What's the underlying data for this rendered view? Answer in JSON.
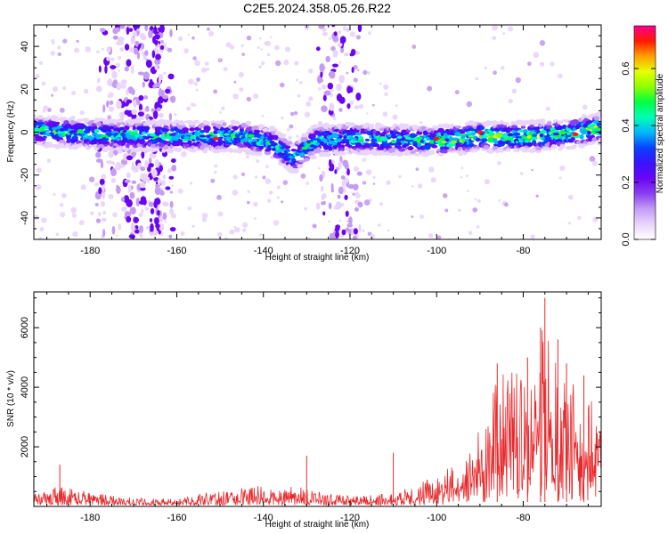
{
  "title": "C2E5.2024.358.05.26.R22",
  "chart_data": [
    {
      "type": "heatmap",
      "xlabel": "Height of straight line (km)",
      "ylabel": "Frequency (Hz)",
      "xlim": [
        -193,
        -62
      ],
      "ylim": [
        -50,
        50
      ],
      "x_ticks": [
        -180,
        -160,
        -140,
        -120,
        -100,
        -80
      ],
      "y_ticks": [
        -40,
        -20,
        0,
        20,
        40
      ],
      "colorbar": {
        "label": "Normalized spectral amplitude",
        "range": [
          0.0,
          0.75
        ],
        "ticks": [
          0.0,
          0.2,
          0.4,
          0.6
        ],
        "colors": [
          "#ffffff",
          "#e9d4fb",
          "#c49cf3",
          "#8a3ff0",
          "#6a06f4",
          "#3a12ff",
          "#0a40ff",
          "#00b7ff",
          "#00ffb4",
          "#00ff44",
          "#8cff00",
          "#e6ff00",
          "#ffa000",
          "#ff1a00",
          "#ff0090"
        ]
      },
      "feature": {
        "description": "Main spectral band centred near 0 Hz, dipping to about -15 Hz around -133 km; strong vertical smears near -171, -166 and -125 km; peak amplitudes near -90 and -68 km",
        "band_center_points": [
          [
            -193,
            1
          ],
          [
            -180,
            -1
          ],
          [
            -160,
            -2
          ],
          [
            -145,
            -2
          ],
          [
            -138,
            -5
          ],
          [
            -133,
            -12
          ],
          [
            -128,
            -4
          ],
          [
            -120,
            -3
          ],
          [
            -100,
            -4
          ],
          [
            -90,
            -2
          ],
          [
            -80,
            -2
          ],
          [
            -70,
            -1
          ],
          [
            -62,
            2
          ]
        ],
        "band_halfwidth": 4,
        "smear_columns_km": [
          -176,
          -171,
          -166,
          -163,
          -125,
          -120
        ]
      }
    },
    {
      "type": "line",
      "xlabel": "Height of straight line (km)",
      "ylabel": "SNR (10 * v/v)",
      "xlim": [
        -193,
        -62
      ],
      "ylim": [
        0,
        7200
      ],
      "x_ticks": [
        -180,
        -160,
        -140,
        -120,
        -100,
        -80
      ],
      "y_ticks": [
        2000,
        4000,
        6000
      ],
      "series": [
        {
          "color": "#e8282b",
          "envelope_points": [
            [
              -193,
              400
            ],
            [
              -187,
              700
            ],
            [
              -182,
              550
            ],
            [
              -175,
              400
            ],
            [
              -170,
              280
            ],
            [
              -160,
              260
            ],
            [
              -155,
              450
            ],
            [
              -148,
              550
            ],
            [
              -142,
              750
            ],
            [
              -138,
              550
            ],
            [
              -132,
              700
            ],
            [
              -128,
              500
            ],
            [
              -120,
              350
            ],
            [
              -110,
              500
            ],
            [
              -105,
              700
            ],
            [
              -100,
              1100
            ],
            [
              -95,
              1500
            ],
            [
              -90,
              2600
            ],
            [
              -87,
              4000
            ],
            [
              -85,
              4700
            ],
            [
              -80,
              4600
            ],
            [
              -77,
              5300
            ],
            [
              -75,
              6200
            ],
            [
              -72,
              4600
            ],
            [
              -68,
              4200
            ],
            [
              -65,
              3600
            ],
            [
              -62,
              3400
            ]
          ],
          "spikes": [
            [
              -187,
              1400
            ],
            [
              -130,
              1700
            ],
            [
              -110,
              1800
            ],
            [
              -86,
              4800
            ],
            [
              -79,
              5000
            ],
            [
              -76,
              6000
            ],
            [
              -75,
              7000
            ],
            [
              -72,
              5600
            ],
            [
              -70,
              4800
            ],
            [
              -66,
              4400
            ]
          ]
        }
      ]
    }
  ]
}
